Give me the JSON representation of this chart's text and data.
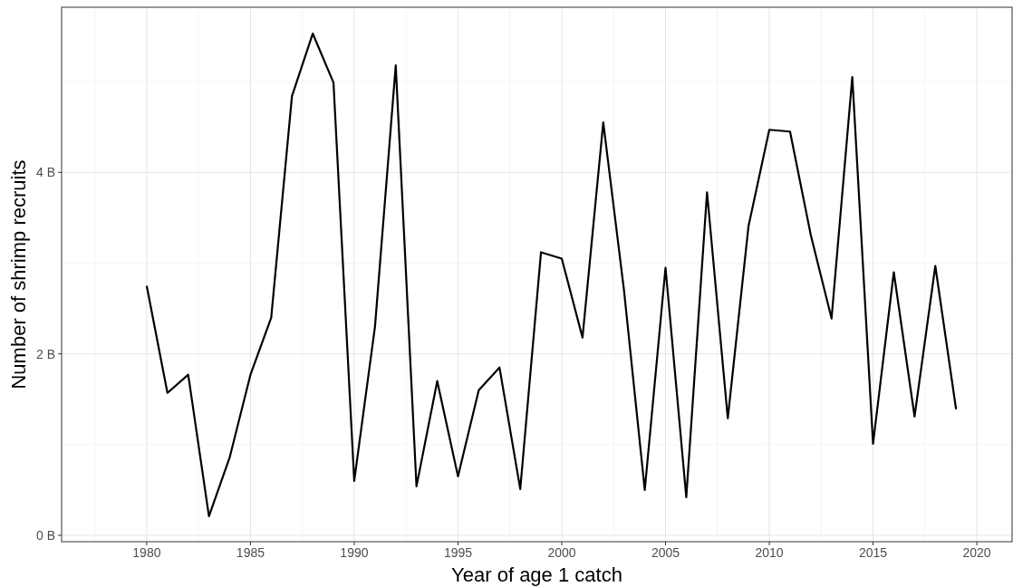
{
  "chart_data": {
    "type": "line",
    "xlabel": "Year of age 1 catch",
    "ylabel": "Number of shrimp recruits",
    "x": [
      1980,
      1981,
      1982,
      1983,
      1984,
      1985,
      1986,
      1987,
      1988,
      1989,
      1990,
      1991,
      1992,
      1993,
      1994,
      1995,
      1996,
      1997,
      1998,
      1999,
      2000,
      2001,
      2002,
      2003,
      2004,
      2005,
      2006,
      2007,
      2008,
      2009,
      2010,
      2011,
      2012,
      2013,
      2014,
      2015,
      2016,
      2017,
      2018,
      2019
    ],
    "series": [
      {
        "color": "#000000",
        "values": [
          2.75,
          1.57,
          1.77,
          0.21,
          0.86,
          1.77,
          2.4,
          4.84,
          5.53,
          4.99,
          0.6,
          2.3,
          5.18,
          0.54,
          1.7,
          0.65,
          1.6,
          1.85,
          0.51,
          3.12,
          3.05,
          2.18,
          4.55,
          2.7,
          0.5,
          2.95,
          0.42,
          3.78,
          1.29,
          3.41,
          4.47,
          4.45,
          3.31,
          2.39,
          5.05,
          1.01,
          2.9,
          1.31,
          2.97,
          1.39
        ]
      }
    ],
    "xlim": [
      1975.9,
      2021.7
    ],
    "xticks": [
      1980,
      1985,
      1990,
      1995,
      2000,
      2005,
      2010,
      2015,
      2020
    ],
    "ylim": [
      -0.07,
      5.82
    ],
    "yticks": [
      {
        "value": 0,
        "label": "0 B"
      },
      {
        "value": 2,
        "label": "2 B"
      },
      {
        "value": 4,
        "label": "4 B"
      }
    ],
    "grid": true,
    "marker": "none",
    "line_style": "solid"
  }
}
